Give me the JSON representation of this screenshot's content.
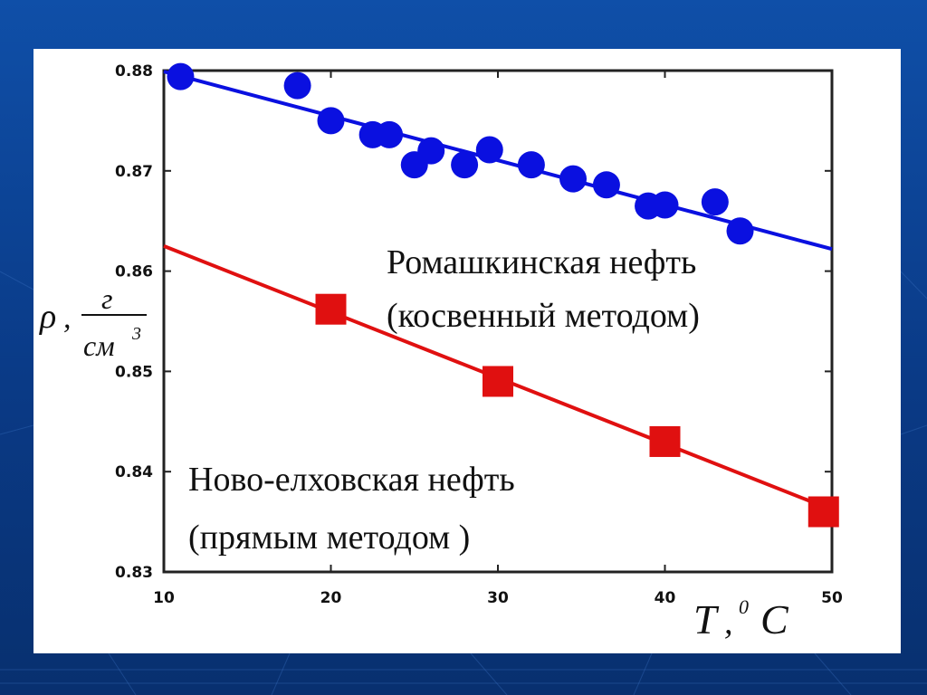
{
  "chart_data": {
    "type": "scatter",
    "xlabel": {
      "symbol": "T",
      "sep": ",",
      "sup": "0",
      "unit": "C"
    },
    "ylabel": {
      "symbol": "ρ",
      "sep": ",",
      "num": "г",
      "den": "см",
      "den_sup": "3"
    },
    "xlim": [
      10,
      50
    ],
    "ylim": [
      0.83,
      0.88
    ],
    "xticks": [
      "10",
      "20",
      "30",
      "40",
      "50"
    ],
    "yticks": [
      "0.83",
      "0.84",
      "0.85",
      "0.86",
      "0.87",
      "0.88"
    ],
    "series": [
      {
        "name": "Ромашкинская нефть (косвенный методом)",
        "label_lines": [
          "Ромашкинская нефть",
          "(косвенный методом)"
        ],
        "color": "#0a10e0",
        "marker": "circle",
        "x": [
          11,
          18,
          20,
          22.5,
          23.5,
          25,
          26,
          28,
          29.5,
          32,
          34.5,
          36.5,
          39,
          40,
          43,
          44.5
        ],
        "y": [
          0.8794,
          0.8785,
          0.875,
          0.8736,
          0.8736,
          0.8706,
          0.872,
          0.8706,
          0.8721,
          0.8706,
          0.8692,
          0.8686,
          0.8665,
          0.8666,
          0.8669,
          0.864
        ],
        "fit": {
          "x": [
            10,
            50
          ],
          "y": [
            0.8799,
            0.8622
          ]
        }
      },
      {
        "name": "Ново-елховская нефть (прямым методом )",
        "label_lines": [
          "Ново-елховская нефть",
          "(прямым методом )"
        ],
        "color": "#e01010",
        "marker": "square",
        "x": [
          20,
          30,
          40,
          49.5
        ],
        "y": [
          0.8562,
          0.849,
          0.843,
          0.836
        ],
        "fit": {
          "x": [
            10,
            50
          ],
          "y": [
            0.8625,
            0.8362
          ]
        }
      }
    ]
  }
}
